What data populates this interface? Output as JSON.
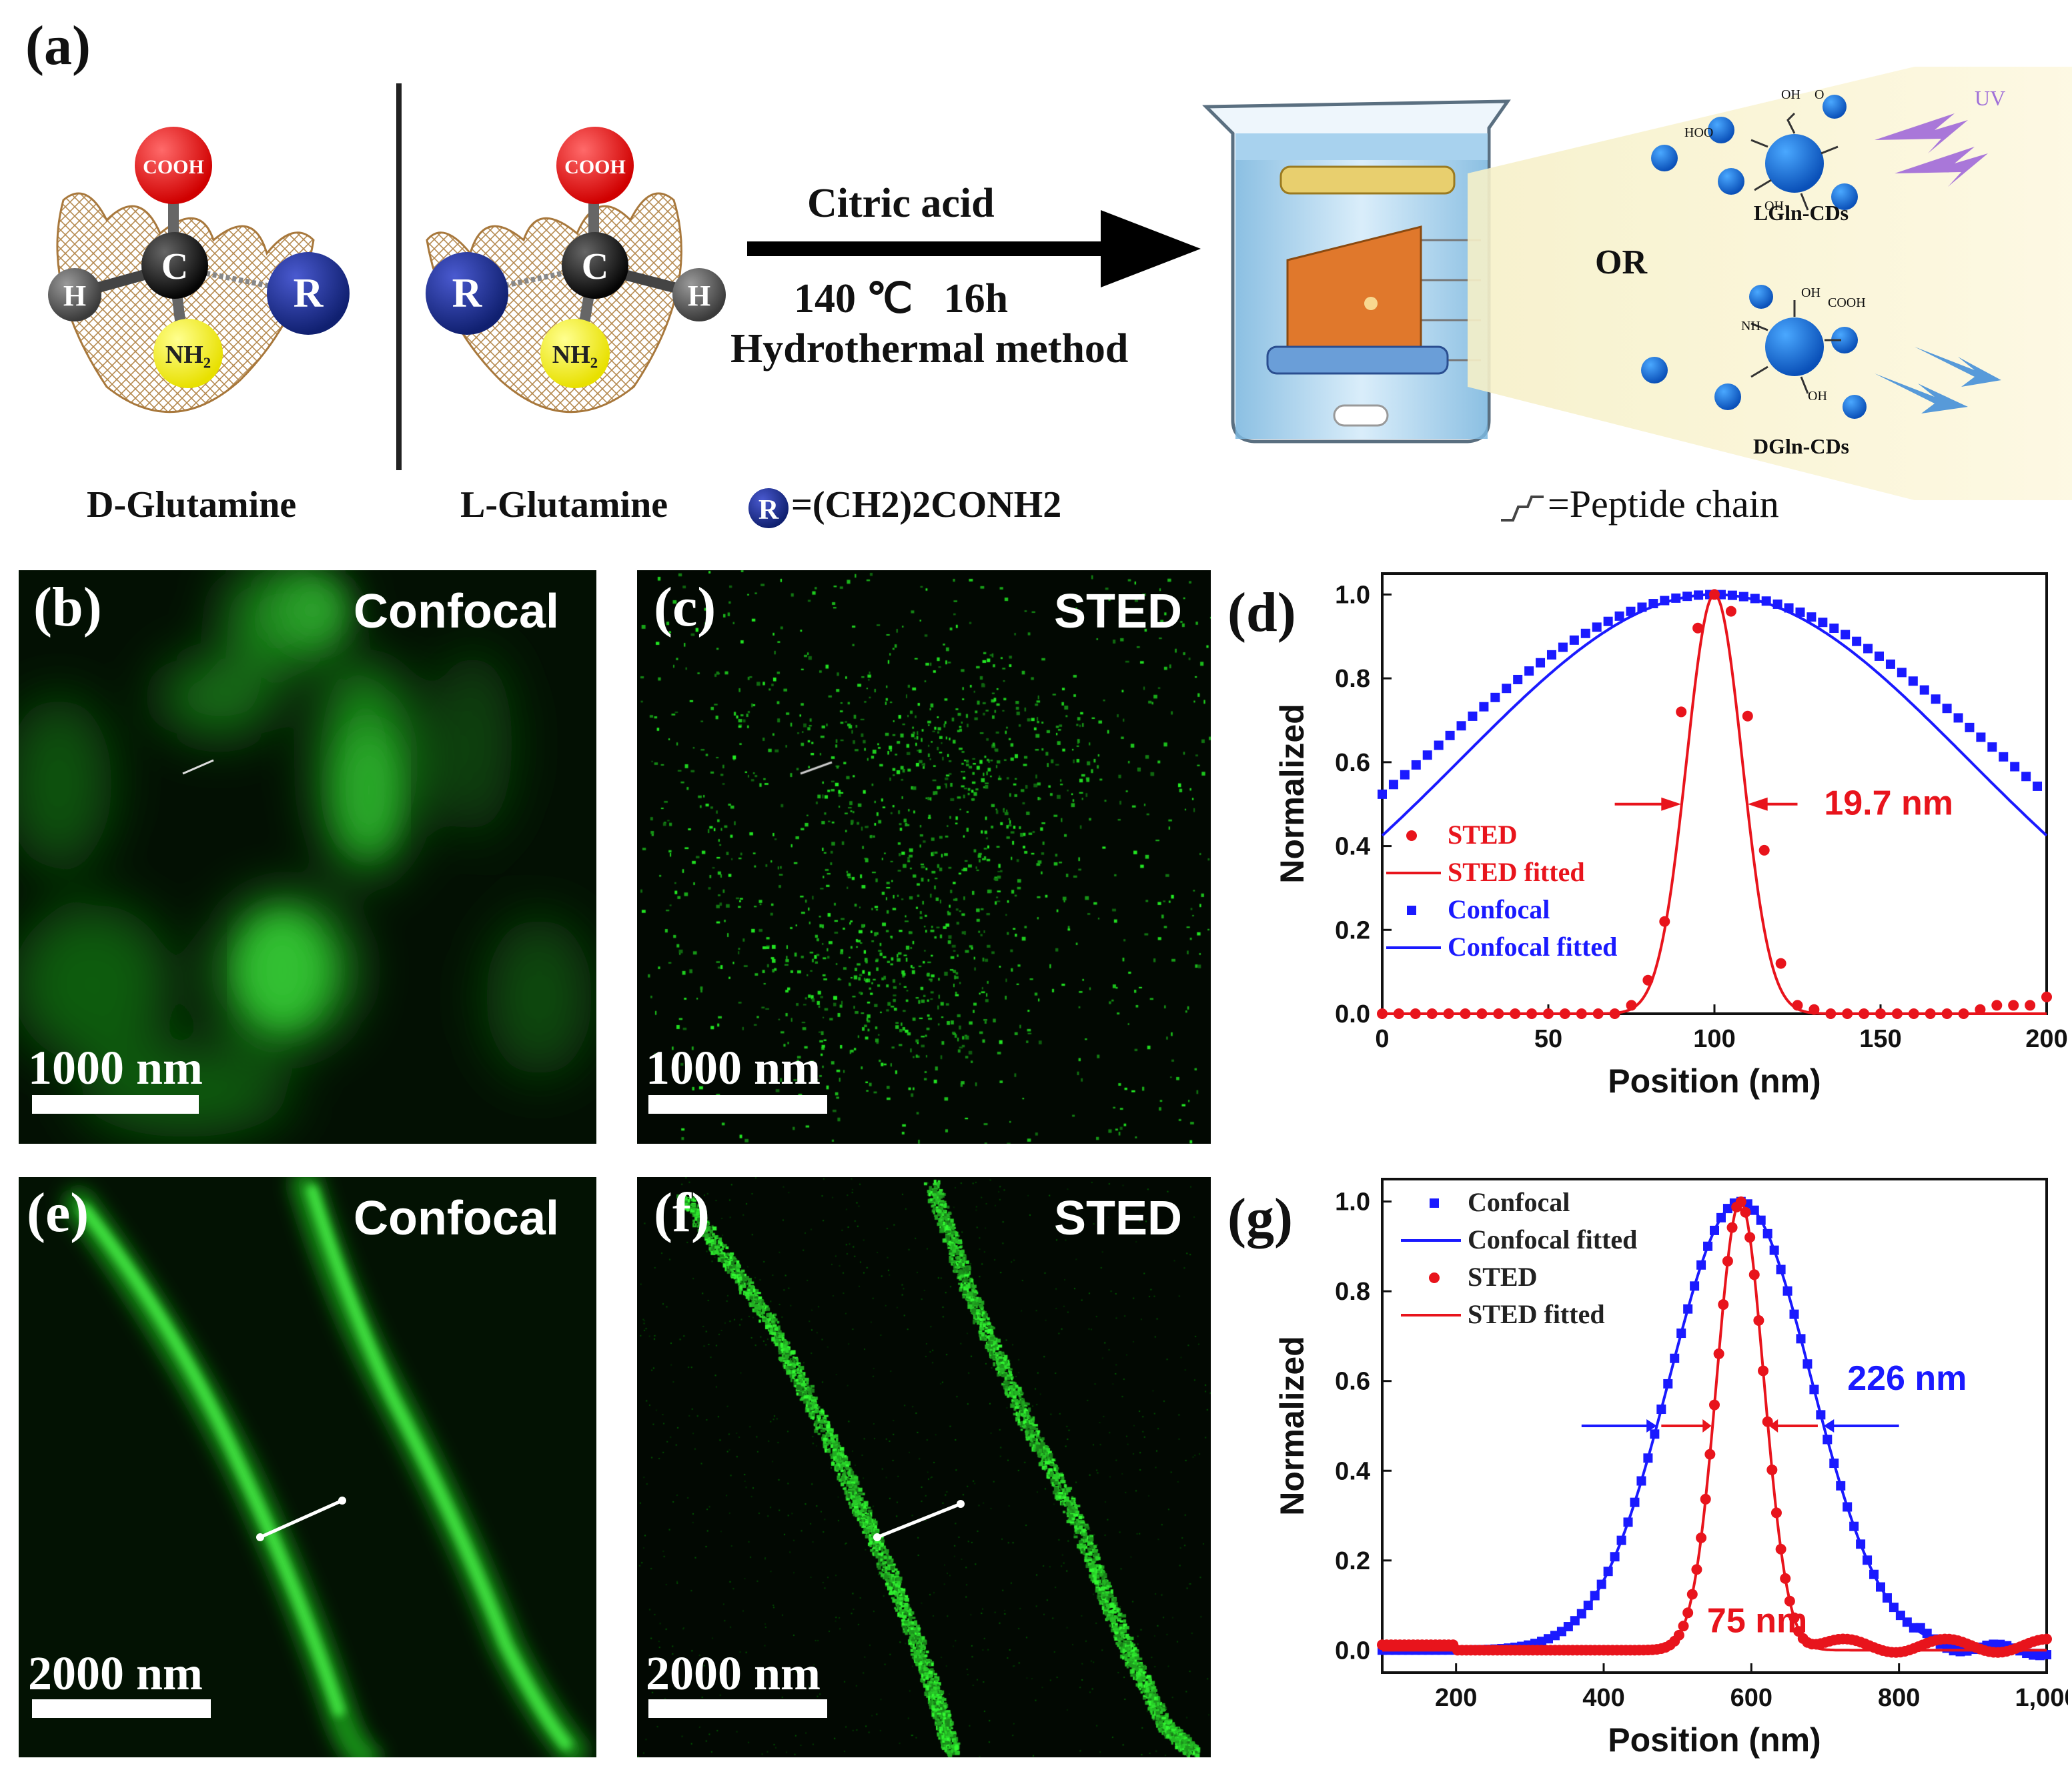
{
  "panel_a": {
    "label": "(a)",
    "d_name": "D-Glutamine",
    "l_name": "L-Glutamine",
    "cooh": "COOH",
    "c": "C",
    "h": "H",
    "r": "R",
    "nh2": "NH₂",
    "r_def": "=(CH2)2CONH2",
    "reagent": "Citric acid",
    "conditions": "140 ℃   16h",
    "method": "Hydrothermal method",
    "or": "OR",
    "uv": "UV",
    "lgln": "LGln-CDs",
    "dgln": "DGln-CDs",
    "peptide": "=Peptide chain",
    "cd_groups": [
      "OH",
      "O",
      "HOO",
      "COOH",
      "NH",
      "NH₂",
      "OH",
      "COOH",
      "O",
      "OH"
    ]
  },
  "micrographs": {
    "b": {
      "label": "(b)",
      "mode": "Confocal",
      "scale": "1000 nm"
    },
    "c": {
      "label": "(c)",
      "mode": "STED",
      "scale": "1000 nm"
    },
    "e": {
      "label": "(e)",
      "mode": "Confocal",
      "scale": "2000 nm"
    },
    "f": {
      "label": "(f)",
      "mode": "STED",
      "scale": "2000 nm"
    }
  },
  "panel_d": {
    "label": "(d)"
  },
  "panel_g": {
    "label": "(g)"
  },
  "chart_data": [
    {
      "id": "d",
      "type": "scatter",
      "xlabel": "Position (nm)",
      "ylabel": "Normalized",
      "xlim": [
        0,
        200
      ],
      "ylim": [
        0,
        1.05
      ],
      "xticks": [
        0,
        50,
        100,
        150,
        200
      ],
      "xtick_labels": [
        "0",
        "50",
        "100",
        "150",
        "200"
      ],
      "yticks": [
        0.0,
        0.2,
        0.4,
        0.6,
        0.8,
        1.0
      ],
      "ytick_labels": [
        "0.0",
        "0.2",
        "0.4",
        "0.6",
        "0.8",
        "1.0"
      ],
      "annotation": "19.7 nm",
      "legend": [
        "STED",
        "STED  fitted",
        "Confocal",
        "Confocal fitted"
      ],
      "legend_position": "left",
      "series": [
        {
          "name": "STED",
          "color": "#e8141c",
          "marker": "circle",
          "x": [
            0,
            5,
            10,
            15,
            20,
            25,
            30,
            35,
            40,
            45,
            50,
            55,
            60,
            65,
            70,
            75,
            80,
            85,
            90,
            95,
            100,
            105,
            110,
            115,
            120,
            125,
            130,
            135,
            140,
            145,
            150,
            155,
            160,
            165,
            170,
            175,
            180,
            185,
            190,
            195,
            200
          ],
          "y": [
            0,
            0,
            0,
            0,
            0,
            0,
            0,
            0,
            0,
            0,
            0,
            0,
            0,
            0,
            0,
            0.02,
            0.08,
            0.22,
            0.72,
            0.92,
            1.0,
            0.96,
            0.71,
            0.39,
            0.12,
            0.02,
            0.01,
            0,
            0,
            0,
            0,
            0,
            0,
            0,
            0,
            0,
            0.01,
            0.02,
            0.02,
            0.02,
            0.04
          ]
        },
        {
          "name": "Confocal",
          "color": "#1a1aff",
          "marker": "square",
          "x": [
            0,
            100,
            200
          ],
          "y": [
            0.62,
            1.0,
            0.62
          ],
          "gaussian_width": 180
        }
      ],
      "fits": [
        {
          "name": "STED  fitted",
          "center": 100,
          "fwhm": 19.7,
          "color": "#e8141c"
        },
        {
          "name": "Confocal fitted",
          "center": 100,
          "fwhm": 180,
          "color": "#1a1aff"
        }
      ]
    },
    {
      "id": "g",
      "type": "scatter",
      "xlabel": "Position (nm)",
      "ylabel": "Normalized",
      "xlim": [
        100,
        1000
      ],
      "ylim": [
        -0.05,
        1.05
      ],
      "xticks": [
        200,
        400,
        600,
        800,
        1000
      ],
      "xtick_labels": [
        "200",
        "400",
        "600",
        "800",
        "1,000"
      ],
      "yticks": [
        0.0,
        0.2,
        0.4,
        0.6,
        0.8,
        1.0
      ],
      "ytick_labels": [
        "0.0",
        "0.2",
        "0.4",
        "0.6",
        "0.8",
        "1.0"
      ],
      "annotations": [
        "226 nm",
        "75 nm"
      ],
      "legend": [
        "Confocal",
        "Confocal fitted",
        "STED",
        "STED fitted"
      ],
      "legend_position": "top-left",
      "fits": [
        {
          "name": "Confocal fitted",
          "center": 585,
          "fwhm": 226,
          "color": "#1a1aff"
        },
        {
          "name": "STED fitted",
          "center": 585,
          "fwhm": 75,
          "color": "#e8141c"
        }
      ]
    }
  ]
}
